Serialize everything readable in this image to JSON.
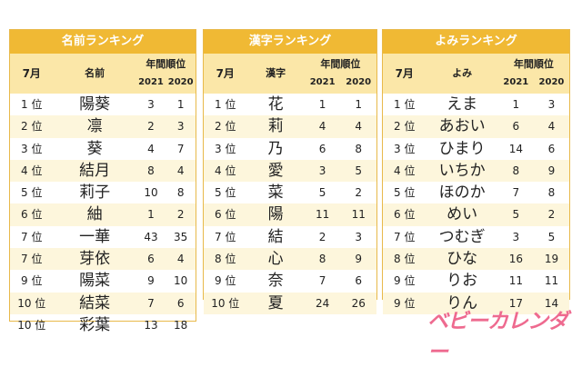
{
  "tables": [
    {
      "title": "名前ランキング",
      "headers": {
        "month": "7月",
        "item": "名前",
        "annual": "年間順位",
        "y2021": "2021",
        "y2020": "2020"
      },
      "rows": [
        {
          "rank": "1 位",
          "item": "陽葵",
          "r2021": "3",
          "r2020": "1"
        },
        {
          "rank": "2 位",
          "item": "凛",
          "r2021": "2",
          "r2020": "3"
        },
        {
          "rank": "3 位",
          "item": "葵",
          "r2021": "4",
          "r2020": "7"
        },
        {
          "rank": "4 位",
          "item": "結月",
          "r2021": "8",
          "r2020": "4"
        },
        {
          "rank": "5 位",
          "item": "莉子",
          "r2021": "10",
          "r2020": "8"
        },
        {
          "rank": "6 位",
          "item": "紬",
          "r2021": "1",
          "r2020": "2"
        },
        {
          "rank": "7 位",
          "item": "一華",
          "r2021": "43",
          "r2020": "35"
        },
        {
          "rank": "7 位",
          "item": "芽依",
          "r2021": "6",
          "r2020": "4"
        },
        {
          "rank": "9 位",
          "item": "陽菜",
          "r2021": "9",
          "r2020": "10"
        },
        {
          "rank": "10 位",
          "item": "結菜",
          "r2021": "7",
          "r2020": "6"
        },
        {
          "rank": "10 位",
          "item": "彩葉",
          "r2021": "13",
          "r2020": "18"
        }
      ]
    },
    {
      "title": "漢字ランキング",
      "headers": {
        "month": "7月",
        "item": "漢字",
        "annual": "年間順位",
        "y2021": "2021",
        "y2020": "2020"
      },
      "rows": [
        {
          "rank": "1 位",
          "item": "花",
          "r2021": "1",
          "r2020": "1"
        },
        {
          "rank": "2 位",
          "item": "莉",
          "r2021": "4",
          "r2020": "4"
        },
        {
          "rank": "3 位",
          "item": "乃",
          "r2021": "6",
          "r2020": "8"
        },
        {
          "rank": "4 位",
          "item": "愛",
          "r2021": "3",
          "r2020": "5"
        },
        {
          "rank": "5 位",
          "item": "菜",
          "r2021": "5",
          "r2020": "2"
        },
        {
          "rank": "6 位",
          "item": "陽",
          "r2021": "11",
          "r2020": "11"
        },
        {
          "rank": "7 位",
          "item": "結",
          "r2021": "2",
          "r2020": "3"
        },
        {
          "rank": "8 位",
          "item": "心",
          "r2021": "8",
          "r2020": "9"
        },
        {
          "rank": "9 位",
          "item": "奈",
          "r2021": "7",
          "r2020": "6"
        },
        {
          "rank": "10 位",
          "item": "夏",
          "r2021": "24",
          "r2020": "26"
        }
      ]
    },
    {
      "title": "よみランキング",
      "headers": {
        "month": "7月",
        "item": "よみ",
        "annual": "年間順位",
        "y2021": "2021",
        "y2020": "2020"
      },
      "rows": [
        {
          "rank": "1 位",
          "item": "えま",
          "r2021": "1",
          "r2020": "3"
        },
        {
          "rank": "2 位",
          "item": "あおい",
          "r2021": "6",
          "r2020": "4"
        },
        {
          "rank": "3 位",
          "item": "ひまり",
          "r2021": "14",
          "r2020": "6"
        },
        {
          "rank": "4 位",
          "item": "いちか",
          "r2021": "8",
          "r2020": "9"
        },
        {
          "rank": "5 位",
          "item": "ほのか",
          "r2021": "7",
          "r2020": "8"
        },
        {
          "rank": "6 位",
          "item": "めい",
          "r2021": "5",
          "r2020": "2"
        },
        {
          "rank": "7 位",
          "item": "つむぎ",
          "r2021": "3",
          "r2020": "5"
        },
        {
          "rank": "8 位",
          "item": "ひな",
          "r2021": "16",
          "r2020": "19"
        },
        {
          "rank": "9 位",
          "item": "りお",
          "r2021": "11",
          "r2020": "11"
        },
        {
          "rank": "9 位",
          "item": "りん",
          "r2021": "17",
          "r2020": "14"
        }
      ]
    }
  ],
  "brand": "ベビーカレンダー",
  "colors": {
    "title_bg": "#f0b934",
    "header_bg": "#fbe7a8",
    "stripe": "#fdf6dc",
    "brand": "#ee6a8f"
  }
}
